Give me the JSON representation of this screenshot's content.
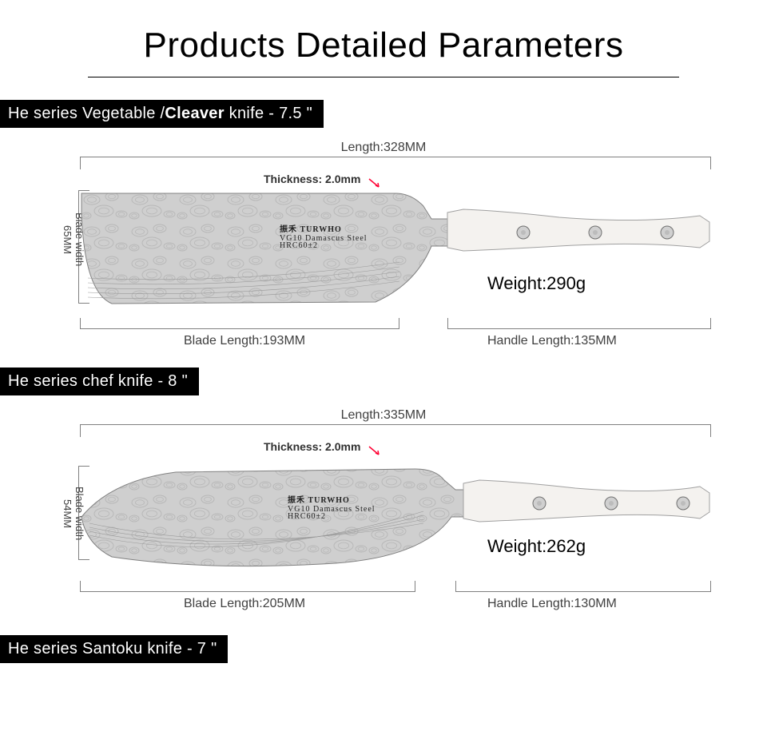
{
  "page": {
    "title": "Products Detailed Parameters",
    "title_fontsize": 44,
    "title_color": "#000000",
    "rule_color": "#000000",
    "background_color": "#ffffff",
    "font_family": "Century Gothic, Futura, Avant Garde, Arial, sans-serif",
    "label_font_family": "Arial, Helvetica, sans-serif",
    "label_color": "#404040",
    "bracket_color": "#808080"
  },
  "knives": [
    {
      "id": "cleaver",
      "section_html": "He series Vegetable /<b>Cleaver</b> knife - 7.5 \"",
      "section_bg": "#000000",
      "section_fg": "#ffffff",
      "total_length": "Length:328MM",
      "thickness": "Thickness: 2.0mm",
      "thickness_arrow_color": "#ff0033",
      "blade_width_lines": [
        "Blade width",
        "65MM"
      ],
      "blade_length": "Blade Length:193MM",
      "handle_length": "Handle Length:135MM",
      "weight": "Weight:290g",
      "brand": "TURWHO",
      "brand_sub1": "VG10 Damascus Steel",
      "brand_sub2": "HRC60±2",
      "shape": "cleaver",
      "blade_fill": "#cfcfcf",
      "pattern_fill": "#b8b8b8",
      "blade_stroke": "#808080",
      "handle_fill": "#f4f2ef",
      "handle_stroke": "#a0a0a0",
      "rivet_fill": "#d0d0d0",
      "rivet_stroke": "#707070"
    },
    {
      "id": "chef",
      "section_html": "He series chef knife - 8 \"",
      "section_bg": "#000000",
      "section_fg": "#ffffff",
      "total_length": "Length:335MM",
      "thickness": "Thickness: 2.0mm",
      "thickness_arrow_color": "#ff0033",
      "blade_width_lines": [
        "Blade width",
        "54MM"
      ],
      "blade_length": "Blade Length:205MM",
      "handle_length": "Handle Length:130MM",
      "weight": "Weight:262g",
      "brand": "TURWHO",
      "brand_sub1": "VG10 Damascus Steel",
      "brand_sub2": "HRC60±2",
      "shape": "chef",
      "blade_fill": "#cfcfcf",
      "pattern_fill": "#b8b8b8",
      "blade_stroke": "#808080",
      "handle_fill": "#f4f2ef",
      "handle_stroke": "#a0a0a0",
      "rivet_fill": "#d0d0d0",
      "rivet_stroke": "#707070"
    },
    {
      "id": "santoku",
      "section_html": "He series Santoku knife - 7 \"",
      "section_bg": "#000000",
      "section_fg": "#ffffff"
    }
  ],
  "layout": {
    "diagram1_height": 290,
    "diagram2_height": 290,
    "diagram_total_width": 960,
    "knife_svg_width": 790,
    "cleaver_svg_height": 160,
    "chef_svg_height": 150,
    "blade_split_x_cleaver": 500,
    "blade_split_x_chef": 520
  }
}
